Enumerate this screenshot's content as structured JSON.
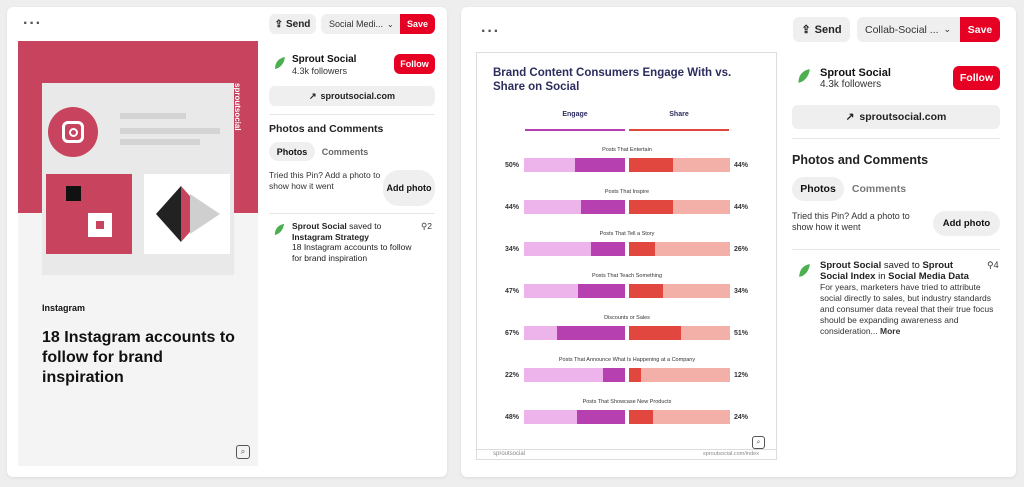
{
  "card1": {
    "send_label": "Send",
    "board_select": "Social Medi...",
    "save_label": "Save",
    "pin_image": {
      "brand_vertical": "sproutsocial",
      "kicker": "Instagram",
      "headline": "18 Instagram accounts to follow for brand inspiration"
    },
    "profile": {
      "name": "Sprout Social",
      "followers": "4.3k followers",
      "follow_label": "Follow"
    },
    "link_label": "sproutsocial.com",
    "photos_heading": "Photos and Comments",
    "tabs": [
      "Photos",
      "Comments"
    ],
    "tried_text": "Tried this Pin? Add a photo to show how it went",
    "add_photo_label": "Add photo",
    "activity": {
      "actor": "Sprout Social",
      "saved_to": " saved to ",
      "board": "Instagram Strategy",
      "description": "18 Instagram accounts to follow for brand inspiration",
      "pin_count": "2"
    },
    "colors": {
      "brand_pink": "#c8435e",
      "accent_red": "#e60023"
    }
  },
  "card2": {
    "send_label": "Send",
    "board_select": "Collab-Social ...",
    "save_label": "Save",
    "profile": {
      "name": "Sprout Social",
      "followers": "4.3k followers",
      "follow_label": "Follow"
    },
    "link_label": "sproutsocial.com",
    "photos_heading": "Photos and Comments",
    "tabs": [
      "Photos",
      "Comments"
    ],
    "tried_text": "Tried this Pin? Add a photo to show how it went",
    "add_photo_label": "Add photo",
    "activity": {
      "actor": "Sprout Social",
      "saved_to": " saved to ",
      "board": "Sprout Social Index",
      "in_word": " in ",
      "board2": "Social Media Data",
      "description": "For years, marketers have tried to attribute social directly to sales, but industry standards and consumer data reveal that their true focus should be expanding awareness and consideration...",
      "more_label": "More",
      "pin_count": "4"
    }
  },
  "chart_data": {
    "type": "bar",
    "title": "Brand Content Consumers Engage With vs. Share on Social",
    "legend": [
      "Engage",
      "Share"
    ],
    "categories": [
      "Posts That Entertain",
      "Posts That Inspire",
      "Posts That Tell a Story",
      "Posts That Teach Something",
      "Discounts or Sales",
      "Posts That Announce What Is Happening at a Company",
      "Posts That Showcase New Products"
    ],
    "series": [
      {
        "name": "Engage",
        "values": [
          50,
          44,
          34,
          47,
          67,
          22,
          48
        ],
        "labels": [
          "50%",
          "44%",
          "34%",
          "47%",
          "67%",
          "22%",
          "48%"
        ]
      },
      {
        "name": "Share",
        "values": [
          44,
          44,
          26,
          34,
          51,
          12,
          24
        ],
        "labels": [
          "44%",
          "44%",
          "26%",
          "34%",
          "51%",
          "12%",
          "24%"
        ]
      }
    ],
    "footer_left": "sproutsocial",
    "footer_right": "sproutsocial.com/index",
    "colors": {
      "engage": "#b740b0",
      "engage_bg": "#ecb4ea",
      "share": "#e2473f",
      "share_bg": "#f3b0a8"
    }
  }
}
